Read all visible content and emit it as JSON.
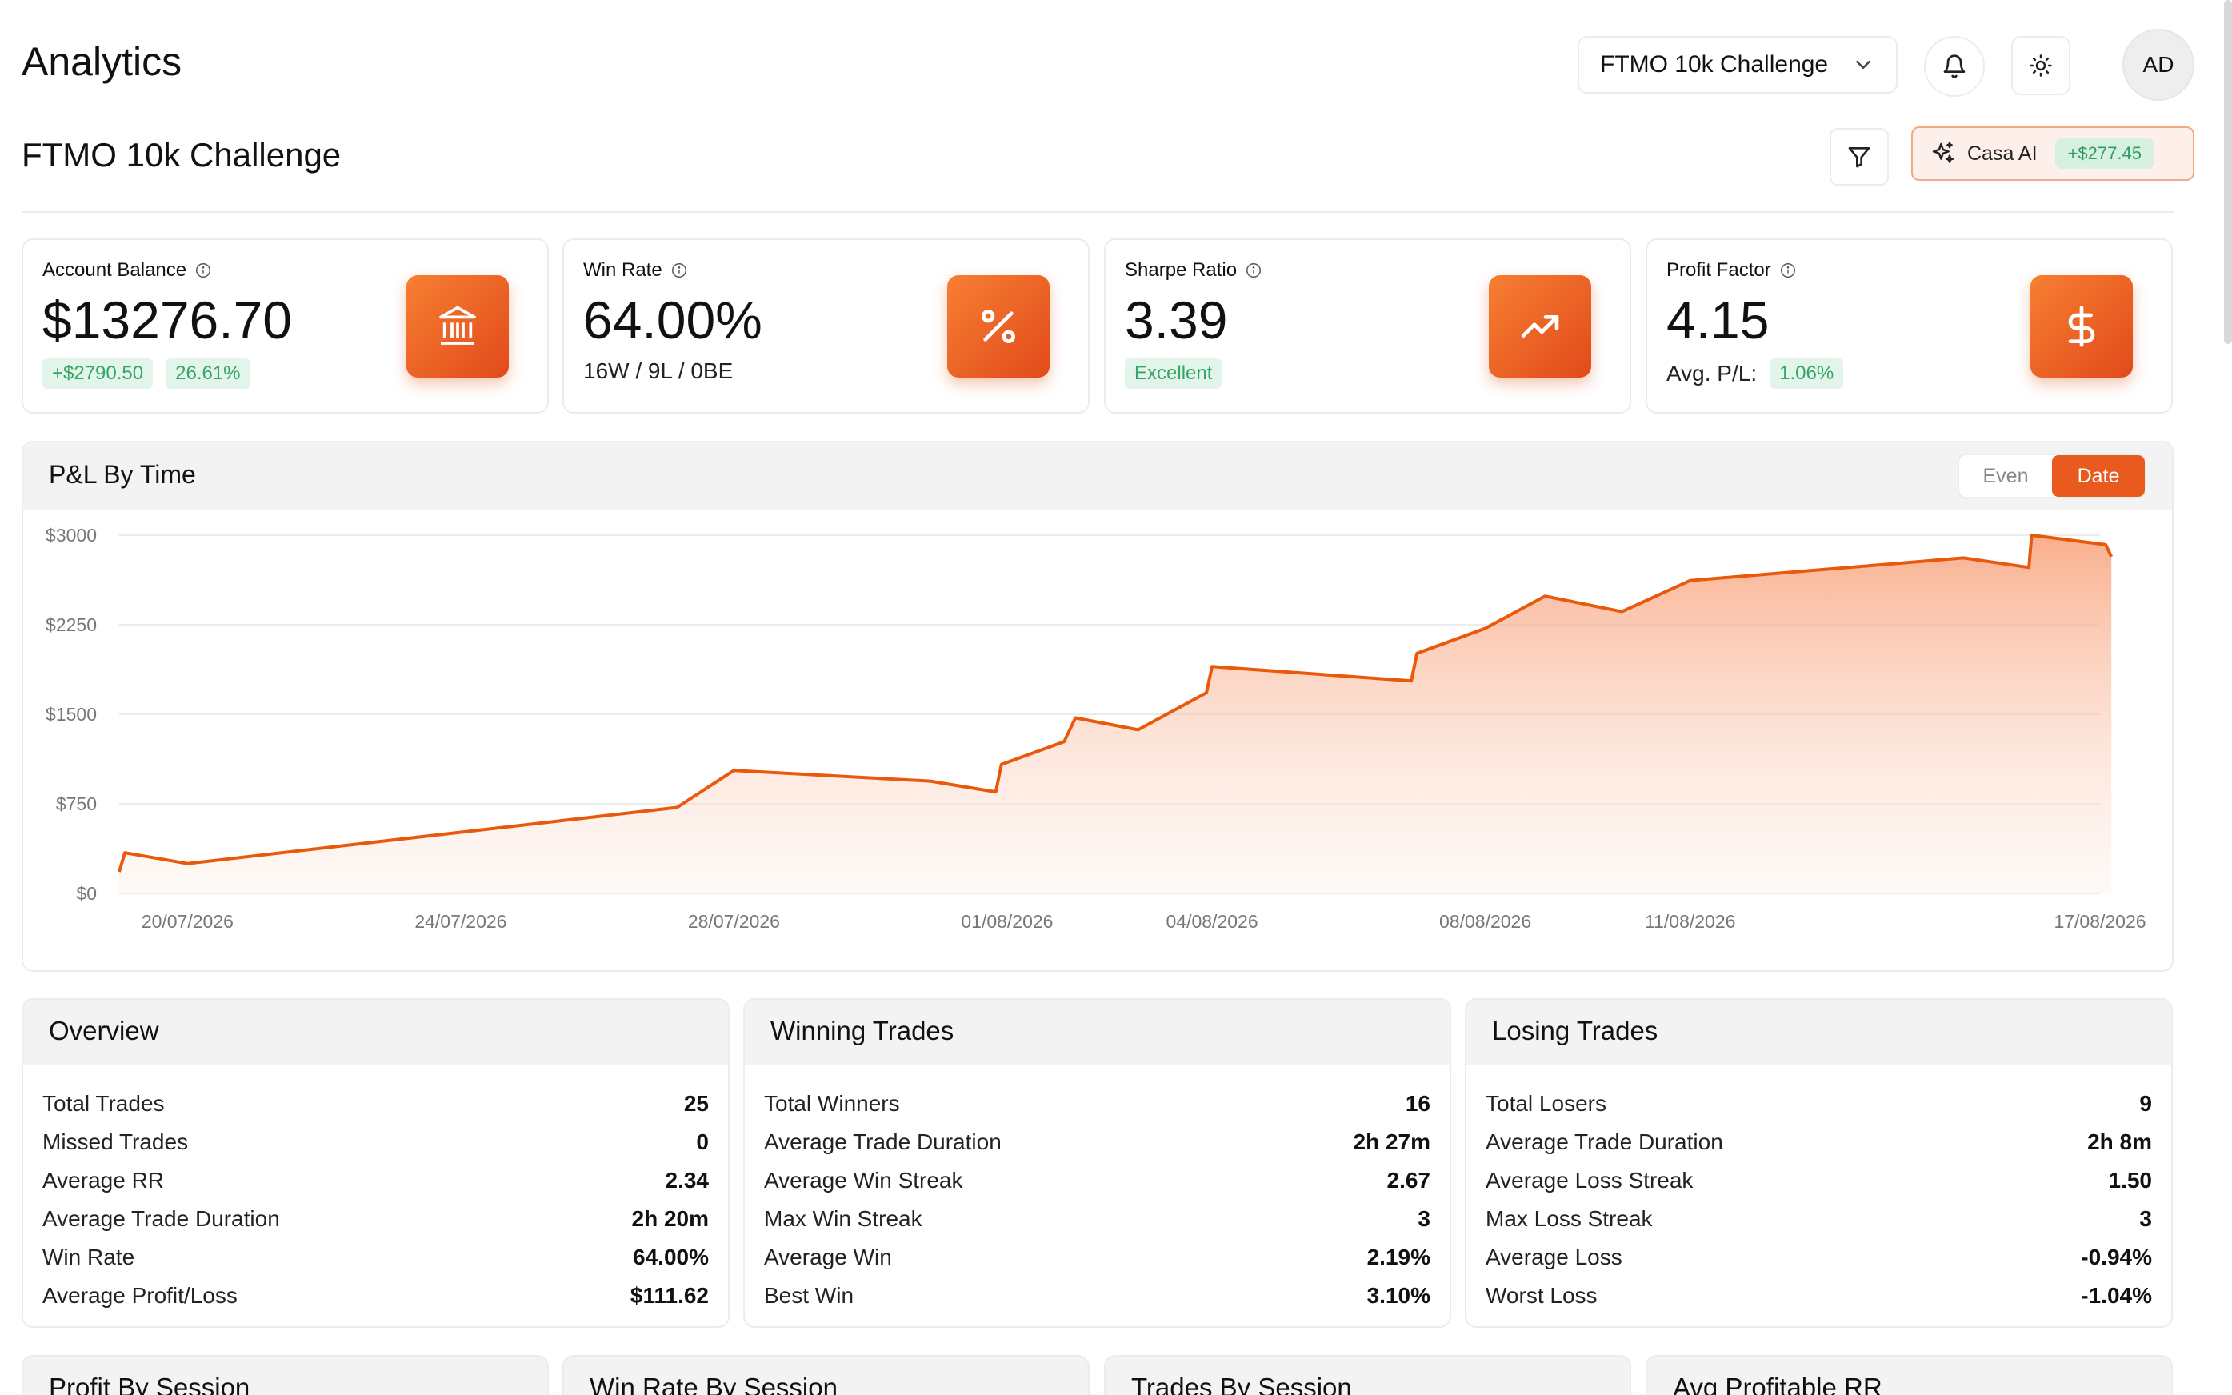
{
  "header": {
    "title": "Analytics",
    "account_select": "FTMO 10k Challenge",
    "avatar_initials": "AD"
  },
  "subheader": {
    "title": "FTMO 10k Challenge",
    "casa_label": "Casa AI",
    "casa_badge": "+$277.45"
  },
  "stats": [
    {
      "label": "Account Balance",
      "value": "$13276.70",
      "badge1": "+$2790.50",
      "badge2": "26.61%",
      "icon": "bank-icon"
    },
    {
      "label": "Win Rate",
      "value": "64.00%",
      "sub": "16W / 9L / 0BE",
      "icon": "percent-icon"
    },
    {
      "label": "Sharpe Ratio",
      "value": "3.39",
      "badge1": "Excellent",
      "icon": "trending-up-icon"
    },
    {
      "label": "Profit Factor",
      "value": "4.15",
      "sub": "Avg. P/L:",
      "badge1": "1.06%",
      "icon": "dollar-icon"
    }
  ],
  "chart_card": {
    "title": "P&L By Time",
    "toggle_even": "Even",
    "toggle_date": "Date"
  },
  "chart_data": {
    "type": "area",
    "title": "P&L By Time",
    "xlabel": "",
    "ylabel": "",
    "ylim": [
      0,
      3000
    ],
    "y_ticks": [
      0,
      750,
      1500,
      2250,
      3000
    ],
    "y_tick_labels": [
      "$0",
      "$750",
      "$1500",
      "$2250",
      "$3000"
    ],
    "x_range": [
      "2026-07-19",
      "2026-08-17"
    ],
    "x_ticks": [
      {
        "date": "2026-07-20",
        "label": "20/07/2026"
      },
      {
        "date": "2026-07-24",
        "label": "24/07/2026"
      },
      {
        "date": "2026-07-28",
        "label": "28/07/2026"
      },
      {
        "date": "2026-08-01",
        "label": "01/08/2026"
      },
      {
        "date": "2026-08-04",
        "label": "04/08/2026"
      },
      {
        "date": "2026-08-08",
        "label": "08/08/2026"
      },
      {
        "date": "2026-08-11",
        "label": "11/08/2026"
      },
      {
        "date": "2026-08-17",
        "label": "17/08/2026"
      }
    ],
    "series": [
      {
        "color": "#e8590c",
        "points": [
          [
            "2026-07-19T00:00",
            180
          ],
          [
            "2026-07-19T02:00",
            340
          ],
          [
            "2026-07-20T00:00",
            250
          ],
          [
            "2026-07-27T04:00",
            720
          ],
          [
            "2026-07-28T00:00",
            1030
          ],
          [
            "2026-07-30T21:00",
            940
          ],
          [
            "2026-07-31T20:00",
            850
          ],
          [
            "2026-07-31T22:00",
            1080
          ],
          [
            "2026-08-01T20:00",
            1270
          ],
          [
            "2026-08-02T00:00",
            1470
          ],
          [
            "2026-08-02T22:00",
            1370
          ],
          [
            "2026-08-03T22:00",
            1680
          ],
          [
            "2026-08-04T00:00",
            1900
          ],
          [
            "2026-08-06T22:00",
            1780
          ],
          [
            "2026-08-07T00:00",
            2010
          ],
          [
            "2026-08-08T00:00",
            2220
          ],
          [
            "2026-08-08T21:00",
            2490
          ],
          [
            "2026-08-10T00:00",
            2360
          ],
          [
            "2026-08-11T00:00",
            2620
          ],
          [
            "2026-08-15T00:00",
            2810
          ],
          [
            "2026-08-15T23:00",
            2730
          ],
          [
            "2026-08-16T00:00",
            3000
          ],
          [
            "2026-08-17T02:00",
            2920
          ],
          [
            "2026-08-17T04:00",
            2820
          ]
        ]
      }
    ],
    "grid": true
  },
  "tables": [
    {
      "title": "Overview",
      "rows": [
        [
          "Total Trades",
          "25"
        ],
        [
          "Missed Trades",
          "0"
        ],
        [
          "Average RR",
          "2.34"
        ],
        [
          "Average Trade Duration",
          "2h 20m"
        ],
        [
          "Win Rate",
          "64.00%"
        ],
        [
          "Average Profit/Loss",
          "$111.62"
        ]
      ]
    },
    {
      "title": "Winning Trades",
      "rows": [
        [
          "Total Winners",
          "16"
        ],
        [
          "Average Trade Duration",
          "2h 27m"
        ],
        [
          "Average Win Streak",
          "2.67"
        ],
        [
          "Max Win Streak",
          "3"
        ],
        [
          "Average Win",
          "2.19%"
        ],
        [
          "Best Win",
          "3.10%"
        ]
      ]
    },
    {
      "title": "Losing Trades",
      "rows": [
        [
          "Total Losers",
          "9"
        ],
        [
          "Average Trade Duration",
          "2h 8m"
        ],
        [
          "Average Loss Streak",
          "1.50"
        ],
        [
          "Max Loss Streak",
          "3"
        ],
        [
          "Average Loss",
          "-0.94%"
        ],
        [
          "Worst Loss",
          "-1.04%"
        ]
      ]
    }
  ],
  "bottom_cards": [
    "Profit By Session",
    "Win Rate By Session",
    "Trades By Session",
    "Avg Profitable RR"
  ],
  "colors": {
    "accent": "#e8590c",
    "positive": "#33a565",
    "positive_bg": "#e3f5ea",
    "card_head_bg": "#f3f3f3"
  }
}
